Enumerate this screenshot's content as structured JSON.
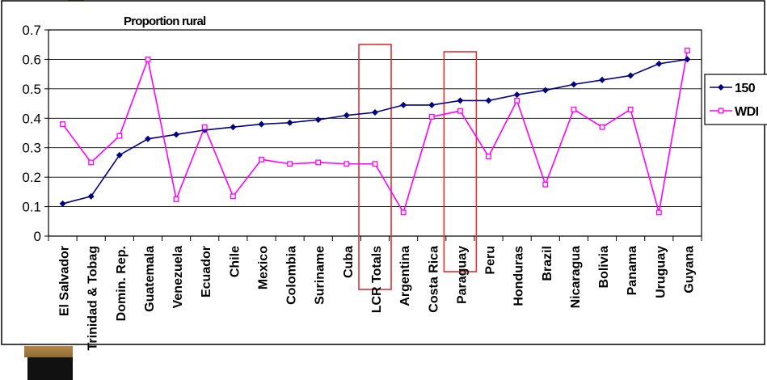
{
  "chart_data": {
    "type": "line",
    "title": "Proportion rural",
    "xlabel": "",
    "ylabel": "",
    "ylim": [
      0,
      0.7
    ],
    "yticks": [
      "0",
      "0.1",
      "0.2",
      "0.3",
      "0.4",
      "0.5",
      "0.6",
      "0.7"
    ],
    "grid": true,
    "legend_position": "right",
    "categories": [
      "El Salvador",
      "Trinidad & Tobag",
      "Domin. Rep.",
      "Guatemala",
      "Venezuela",
      "Ecuador",
      "Chile",
      "Mexico",
      "Colombia",
      "Suriname",
      "Cuba",
      "LCR Totals",
      "Argentina",
      "Costa Rica",
      "Paraguay",
      "Peru",
      "Honduras",
      "Brazil",
      "Nicaragua",
      "Bolivia",
      "Panama",
      "Uruguay",
      "Guyana"
    ],
    "highlighted_categories": [
      "LCR Totals",
      "Paraguay"
    ],
    "series": [
      {
        "name": "150",
        "color": "#000080",
        "marker": "diamond",
        "values": [
          0.11,
          0.135,
          0.275,
          0.33,
          0.345,
          0.36,
          0.37,
          0.38,
          0.385,
          0.395,
          0.41,
          0.42,
          0.445,
          0.445,
          0.46,
          0.46,
          0.48,
          0.495,
          0.515,
          0.53,
          0.545,
          0.585,
          0.6
        ]
      },
      {
        "name": "WDI",
        "color": "#ff00ff",
        "marker": "square",
        "values": [
          0.38,
          0.25,
          0.34,
          0.6,
          0.125,
          0.37,
          0.135,
          0.26,
          0.245,
          0.25,
          0.245,
          0.245,
          0.08,
          0.405,
          0.425,
          0.27,
          0.46,
          0.175,
          0.43,
          0.37,
          0.43,
          0.08,
          0.63
        ]
      }
    ]
  },
  "colors": {
    "highlight_box": "#e03030",
    "gridline": "#000000",
    "frame": "#000000"
  }
}
